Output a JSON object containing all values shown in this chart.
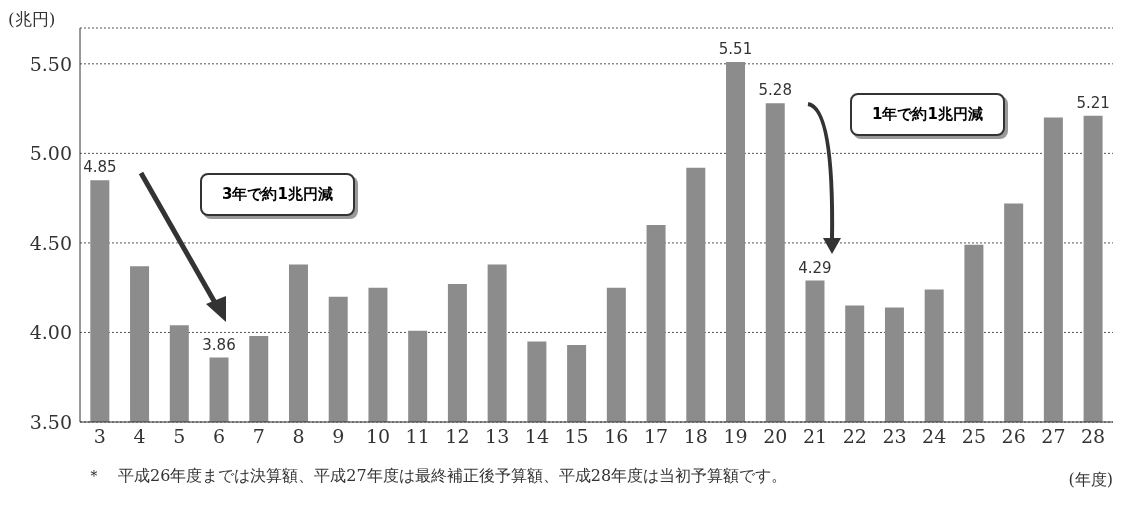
{
  "chart_data": {
    "type": "bar",
    "categories": [
      "3",
      "4",
      "5",
      "6",
      "7",
      "8",
      "9",
      "10",
      "11",
      "12",
      "13",
      "14",
      "15",
      "16",
      "17",
      "18",
      "19",
      "20",
      "21",
      "22",
      "23",
      "24",
      "25",
      "26",
      "27",
      "28"
    ],
    "values": [
      4.85,
      4.37,
      4.04,
      3.86,
      3.98,
      4.38,
      4.2,
      4.25,
      4.01,
      4.27,
      4.38,
      3.95,
      3.93,
      4.25,
      4.6,
      4.92,
      5.51,
      5.28,
      4.29,
      4.15,
      4.14,
      4.24,
      4.49,
      4.72,
      5.2,
      5.21
    ],
    "value_labels": [
      "4.85",
      null,
      null,
      "3.86",
      null,
      null,
      null,
      null,
      null,
      null,
      null,
      null,
      null,
      null,
      null,
      null,
      "5.51",
      "5.28",
      "4.29",
      null,
      null,
      null,
      null,
      null,
      null,
      "5.21"
    ],
    "color": "#8c8c8c",
    "ylabel": "(兆円)",
    "xlabel": "(年度)",
    "ylim": [
      3.5,
      5.7
    ],
    "yticks": [
      {
        "value": 3.5,
        "label": "3.50"
      },
      {
        "value": 4,
        "label": "4.00"
      },
      {
        "value": 4.5,
        "label": "4.50"
      },
      {
        "value": 5,
        "label": "5.00"
      },
      {
        "value": 5.5,
        "label": "5.50"
      }
    ],
    "grid": "y",
    "legend": false,
    "annotations": [
      "3年で約1兆円減",
      "1年で約1兆円減",
      "＊　平成26年度までは決算額、平成27年度は最終補正後予算額、平成28年度は当初予算額です。"
    ]
  }
}
